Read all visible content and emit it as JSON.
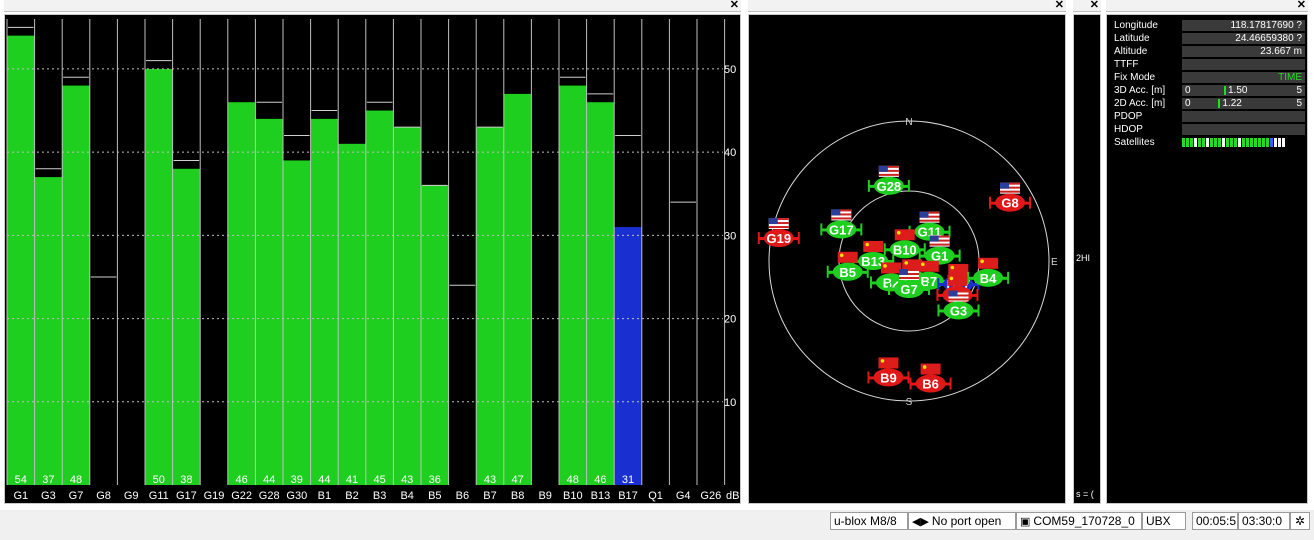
{
  "chart_data": {
    "type": "bar",
    "categories": [
      "G1",
      "G3",
      "G7",
      "G8",
      "G9",
      "G11",
      "G17",
      "G19",
      "G22",
      "G28",
      "G30",
      "B1",
      "B2",
      "B3",
      "B4",
      "B5",
      "B6",
      "B7",
      "B8",
      "B9",
      "B10",
      "B13",
      "B17",
      "Q1",
      "G4",
      "G26"
    ],
    "values": [
      54,
      37,
      48,
      null,
      null,
      50,
      38,
      null,
      46,
      44,
      39,
      44,
      41,
      45,
      43,
      36,
      null,
      43,
      47,
      null,
      48,
      46,
      31,
      null,
      null,
      null
    ],
    "max_marks": [
      55,
      38,
      49,
      25,
      null,
      51,
      39,
      null,
      null,
      46,
      42,
      45,
      null,
      46,
      43,
      36,
      24,
      43,
      null,
      null,
      49,
      47,
      42,
      null,
      34,
      null
    ],
    "value_labels": [
      "54",
      "37",
      "48",
      "",
      "",
      "50",
      "38",
      "",
      "46",
      "44",
      "39",
      "44",
      "41",
      "45",
      "43",
      "36",
      "",
      "43",
      "47",
      "",
      "48",
      "46",
      "31",
      "",
      "",
      ""
    ],
    "bar_colors": [
      "green",
      "green",
      "green",
      "",
      "",
      "green",
      "green",
      "",
      "green",
      "green",
      "green",
      "green",
      "green",
      "green",
      "green",
      "green",
      "",
      "green",
      "green",
      "",
      "green",
      "green",
      "blue",
      "",
      "",
      ""
    ],
    "yticks": [
      "50",
      "40",
      "30",
      "20",
      "10"
    ],
    "ytick_values": [
      50,
      40,
      30,
      20,
      10
    ],
    "ylim": [
      0,
      56
    ],
    "unit": "dB",
    "grid": true
  },
  "colors": {
    "green_bar": "#1fcf1f",
    "blue_bar": "#1a2fd0",
    "background": "#000000",
    "grid": "#bfbfbf"
  },
  "sky": {
    "compass": {
      "north": "N",
      "east": "E",
      "south": "S"
    },
    "satellites": [
      {
        "id": "G28",
        "flag": "us",
        "color": "green",
        "az": 345,
        "el": 40
      },
      {
        "id": "G8",
        "flag": "us",
        "color": "red",
        "az": 60,
        "el": 15
      },
      {
        "id": "G11",
        "flag": "us",
        "color": "green",
        "az": 35,
        "el": 67
      },
      {
        "id": "G17",
        "flag": "us",
        "color": "green",
        "az": 295,
        "el": 42
      },
      {
        "id": "B10",
        "flag": "cn",
        "color": "green",
        "az": 340,
        "el": 82
      },
      {
        "id": "G1",
        "flag": "us",
        "color": "green",
        "az": 80,
        "el": 70
      },
      {
        "id": "G19",
        "flag": "us",
        "color": "red",
        "az": 280,
        "el": 5
      },
      {
        "id": "B13",
        "flag": "cn",
        "color": "green",
        "az": 270,
        "el": 67
      },
      {
        "id": "B5",
        "flag": "cn",
        "color": "green",
        "az": 260,
        "el": 50
      },
      {
        "id": "B2",
        "flag": "cn",
        "color": "green",
        "az": 220,
        "el": 72
      },
      {
        "id": "B3",
        "flag": "cn",
        "color": "green",
        "az": 170,
        "el": 78
      },
      {
        "id": "B7",
        "flag": "cn",
        "color": "green",
        "az": 135,
        "el": 72
      },
      {
        "id": "B17",
        "flag": "cn",
        "color": "blue",
        "az": 115,
        "el": 55
      },
      {
        "id": "B4",
        "flag": "cn",
        "color": "green",
        "az": 102,
        "el": 38
      },
      {
        "id": "Q1",
        "flag": "cn",
        "color": "red",
        "az": 125,
        "el": 52
      },
      {
        "id": "G7",
        "flag": "us",
        "color": "green",
        "az": 180,
        "el": 72
      },
      {
        "id": "G3",
        "flag": "us",
        "color": "green",
        "az": 135,
        "el": 45
      },
      {
        "id": "B9",
        "flag": "cn",
        "color": "red",
        "az": 190,
        "el": 14
      },
      {
        "id": "B6",
        "flag": "cn",
        "color": "red",
        "az": 170,
        "el": 10
      }
    ]
  },
  "mid_panel": {
    "text_top": "2HI",
    "text_bottom": "s = ("
  },
  "info": {
    "rows": [
      {
        "label": "Longitude",
        "value": "118.17817690 ?"
      },
      {
        "label": "Latitude",
        "value": "24.46659380 ?"
      },
      {
        "label": "Altitude",
        "value": "23.667 m"
      },
      {
        "label": "TTFF",
        "value": ""
      },
      {
        "label": "Fix Mode",
        "value": "TIME"
      }
    ],
    "acc3d": {
      "label": "3D Acc. [m]",
      "min": "0",
      "max": "5",
      "value": "1.50",
      "fraction": 0.3
    },
    "acc2d": {
      "label": "2D Acc. [m]",
      "min": "0",
      "max": "5",
      "value": "1.22",
      "fraction": 0.244
    },
    "rows2": [
      {
        "label": "PDOP",
        "value": ""
      },
      {
        "label": "HDOP",
        "value": ""
      }
    ],
    "satellites_label": "Satellites",
    "satellite_colors": [
      "#22dd22",
      "#22dd22",
      "#22dd22",
      "#ffffff",
      "#22dd22",
      "#22dd22",
      "#ffffff",
      "#22dd22",
      "#22dd22",
      "#22dd22",
      "#ffffff",
      "#22dd22",
      "#22dd22",
      "#22dd22",
      "#ffffff",
      "#22dd22",
      "#22dd22",
      "#22dd22",
      "#22dd22",
      "#22dd22",
      "#22dd22",
      "#22dd22",
      "#3a5cff",
      "#ffffff",
      "#ffffff",
      "#ffffff"
    ]
  },
  "statusbar": {
    "receiver": "u-blox M8/8",
    "port": "No port open",
    "file": "COM59_170728_0",
    "protocol": "UBX",
    "time1": "00:05:5",
    "time2": "03:30:0"
  }
}
